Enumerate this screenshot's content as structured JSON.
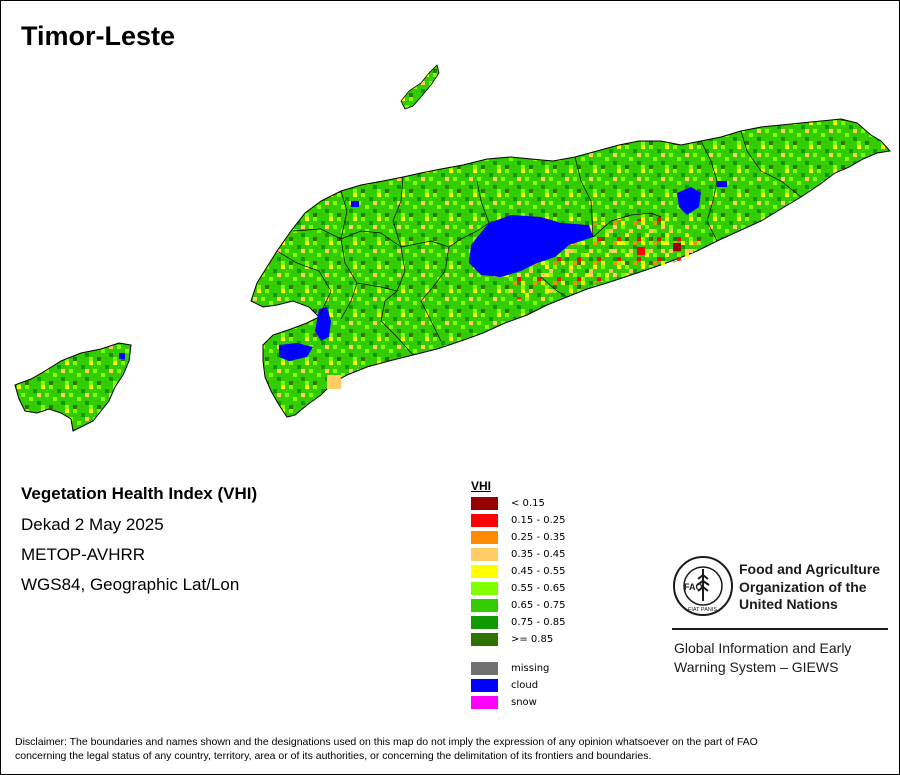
{
  "title": "Timor-Leste",
  "info": {
    "product": "Vegetation Health Index (VHI)",
    "period": "Dekad 2 May 2025",
    "sensor": "METOP-AVHRR",
    "projection": "WGS84, Geographic Lat/Lon"
  },
  "legend": {
    "title": "VHI",
    "classes": [
      {
        "label": "< 0.15",
        "color": "#990000"
      },
      {
        "label": "0.15 - 0.25",
        "color": "#ff0000"
      },
      {
        "label": "0.25 - 0.35",
        "color": "#ff8c00"
      },
      {
        "label": "0.35 - 0.45",
        "color": "#ffcc66"
      },
      {
        "label": "0.45 - 0.55",
        "color": "#ffff00"
      },
      {
        "label": "0.55 - 0.65",
        "color": "#80ff00"
      },
      {
        "label": "0.65 - 0.75",
        "color": "#33cc00"
      },
      {
        "label": "0.75 - 0.85",
        "color": "#119900"
      },
      {
        "label": ">= 0.85",
        "color": "#2e7300"
      }
    ],
    "other": [
      {
        "label": "missing",
        "color": "#707070"
      },
      {
        "label": "cloud",
        "color": "#0000ff"
      },
      {
        "label": "snow",
        "color": "#ff00ff"
      }
    ]
  },
  "logo": {
    "org_line1": "Food and Agriculture",
    "org_line2": "Organization of the",
    "org_line3": "United Nations",
    "seal_text": "FAO",
    "motto": "FIAT PANIS",
    "giews_line1": "Global Information and Early",
    "giews_line2": "Warning System – GIEWS"
  },
  "disclaimer_line1": "Disclaimer: The boundaries and names shown and the designations used on this map do not imply the expression of any opinion whatsoever on the part of FAO",
  "disclaimer_line2": "concerning the legal status of any country, territory, area or of its authorities, or concerning the delimitation of its frontiers and boundaries."
}
